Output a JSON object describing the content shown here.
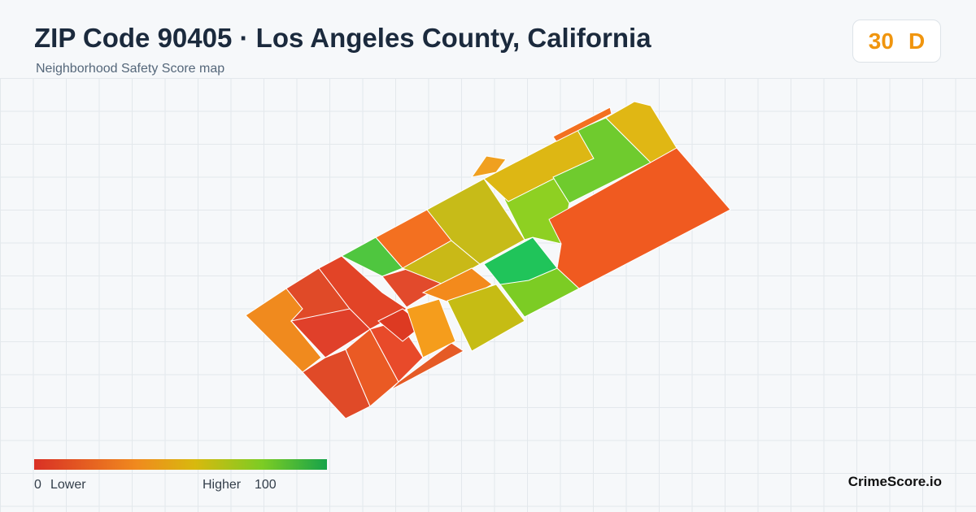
{
  "header": {
    "title": "ZIP Code 90405 · Los Angeles County, California",
    "subtitle": "Neighborhood Safety Score map"
  },
  "score": {
    "value": "30",
    "grade": "D"
  },
  "legend": {
    "min": "0",
    "min_label": "Lower",
    "max_label": "Higher",
    "max": "100"
  },
  "footer": {
    "brand": "CrimeScore.io"
  }
}
